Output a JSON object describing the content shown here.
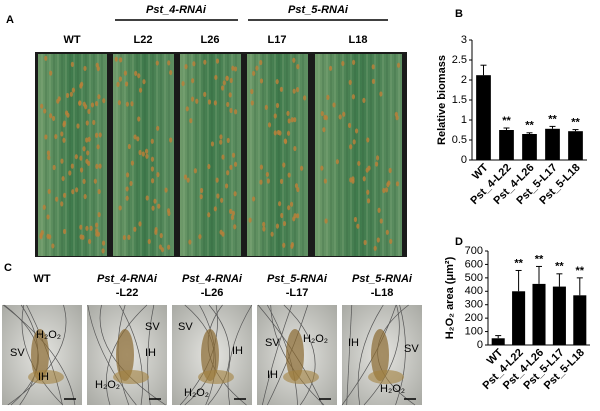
{
  "panel_labels": [
    "A",
    "B",
    "C",
    "D"
  ],
  "panel_a": {
    "groups": [
      "Pst_4-RNAi",
      "Pst_5-RNAi"
    ],
    "lanes": [
      "WT",
      "L22",
      "L26",
      "L17",
      "L18"
    ]
  },
  "panel_c": {
    "images": [
      {
        "title": [
          "WT"
        ],
        "labels": [
          "SV",
          "H₂O₂",
          "IH"
        ]
      },
      {
        "title": [
          "Pst_4-RNAi",
          "-L22"
        ],
        "labels": [
          "SV",
          "IH",
          "H₂O₂"
        ]
      },
      {
        "title": [
          "Pst_4-RNAi",
          "-L26"
        ],
        "labels": [
          "SV",
          "IH",
          "H₂O₂"
        ]
      },
      {
        "title": [
          "Pst_5-RNAi",
          "-L17"
        ],
        "labels": [
          "SV",
          "H₂O₂",
          "IH"
        ]
      },
      {
        "title": [
          "Pst_5-RNAi",
          "-L18"
        ],
        "labels": [
          "IH",
          "SV",
          "H₂O₂"
        ]
      }
    ]
  },
  "chart_data": [
    {
      "type": "bar",
      "ylabel": "Relative biomass",
      "categories": [
        "WT",
        "Pst_4-L22",
        "Pst_4-L26",
        "Pst_5-L17",
        "Pst_5-L18"
      ],
      "values": [
        2.12,
        0.75,
        0.65,
        0.78,
        0.72
      ],
      "errors": [
        0.25,
        0.05,
        0.03,
        0.06,
        0.04
      ],
      "annotations": [
        null,
        "**",
        "**",
        "**",
        "**"
      ],
      "color": "#000000",
      "ylim": [
        0,
        3
      ],
      "yticks": [
        0,
        0.5,
        1,
        1.5,
        2,
        2.5,
        3
      ]
    },
    {
      "type": "bar",
      "ylabel": "H₂O₂ area (μm²)",
      "categories": [
        "WT",
        "Pst_4-L22",
        "Pst_4-L26",
        "Pst_5-L17",
        "Pst_5-L18"
      ],
      "values": [
        50,
        400,
        455,
        435,
        370
      ],
      "errors": [
        20,
        155,
        130,
        95,
        130
      ],
      "annotations": [
        null,
        "**",
        "**",
        "**",
        "**"
      ],
      "color": "#000000",
      "ylim": [
        0,
        700
      ],
      "yticks": [
        0,
        100,
        200,
        300,
        400,
        500,
        600,
        700
      ]
    }
  ]
}
